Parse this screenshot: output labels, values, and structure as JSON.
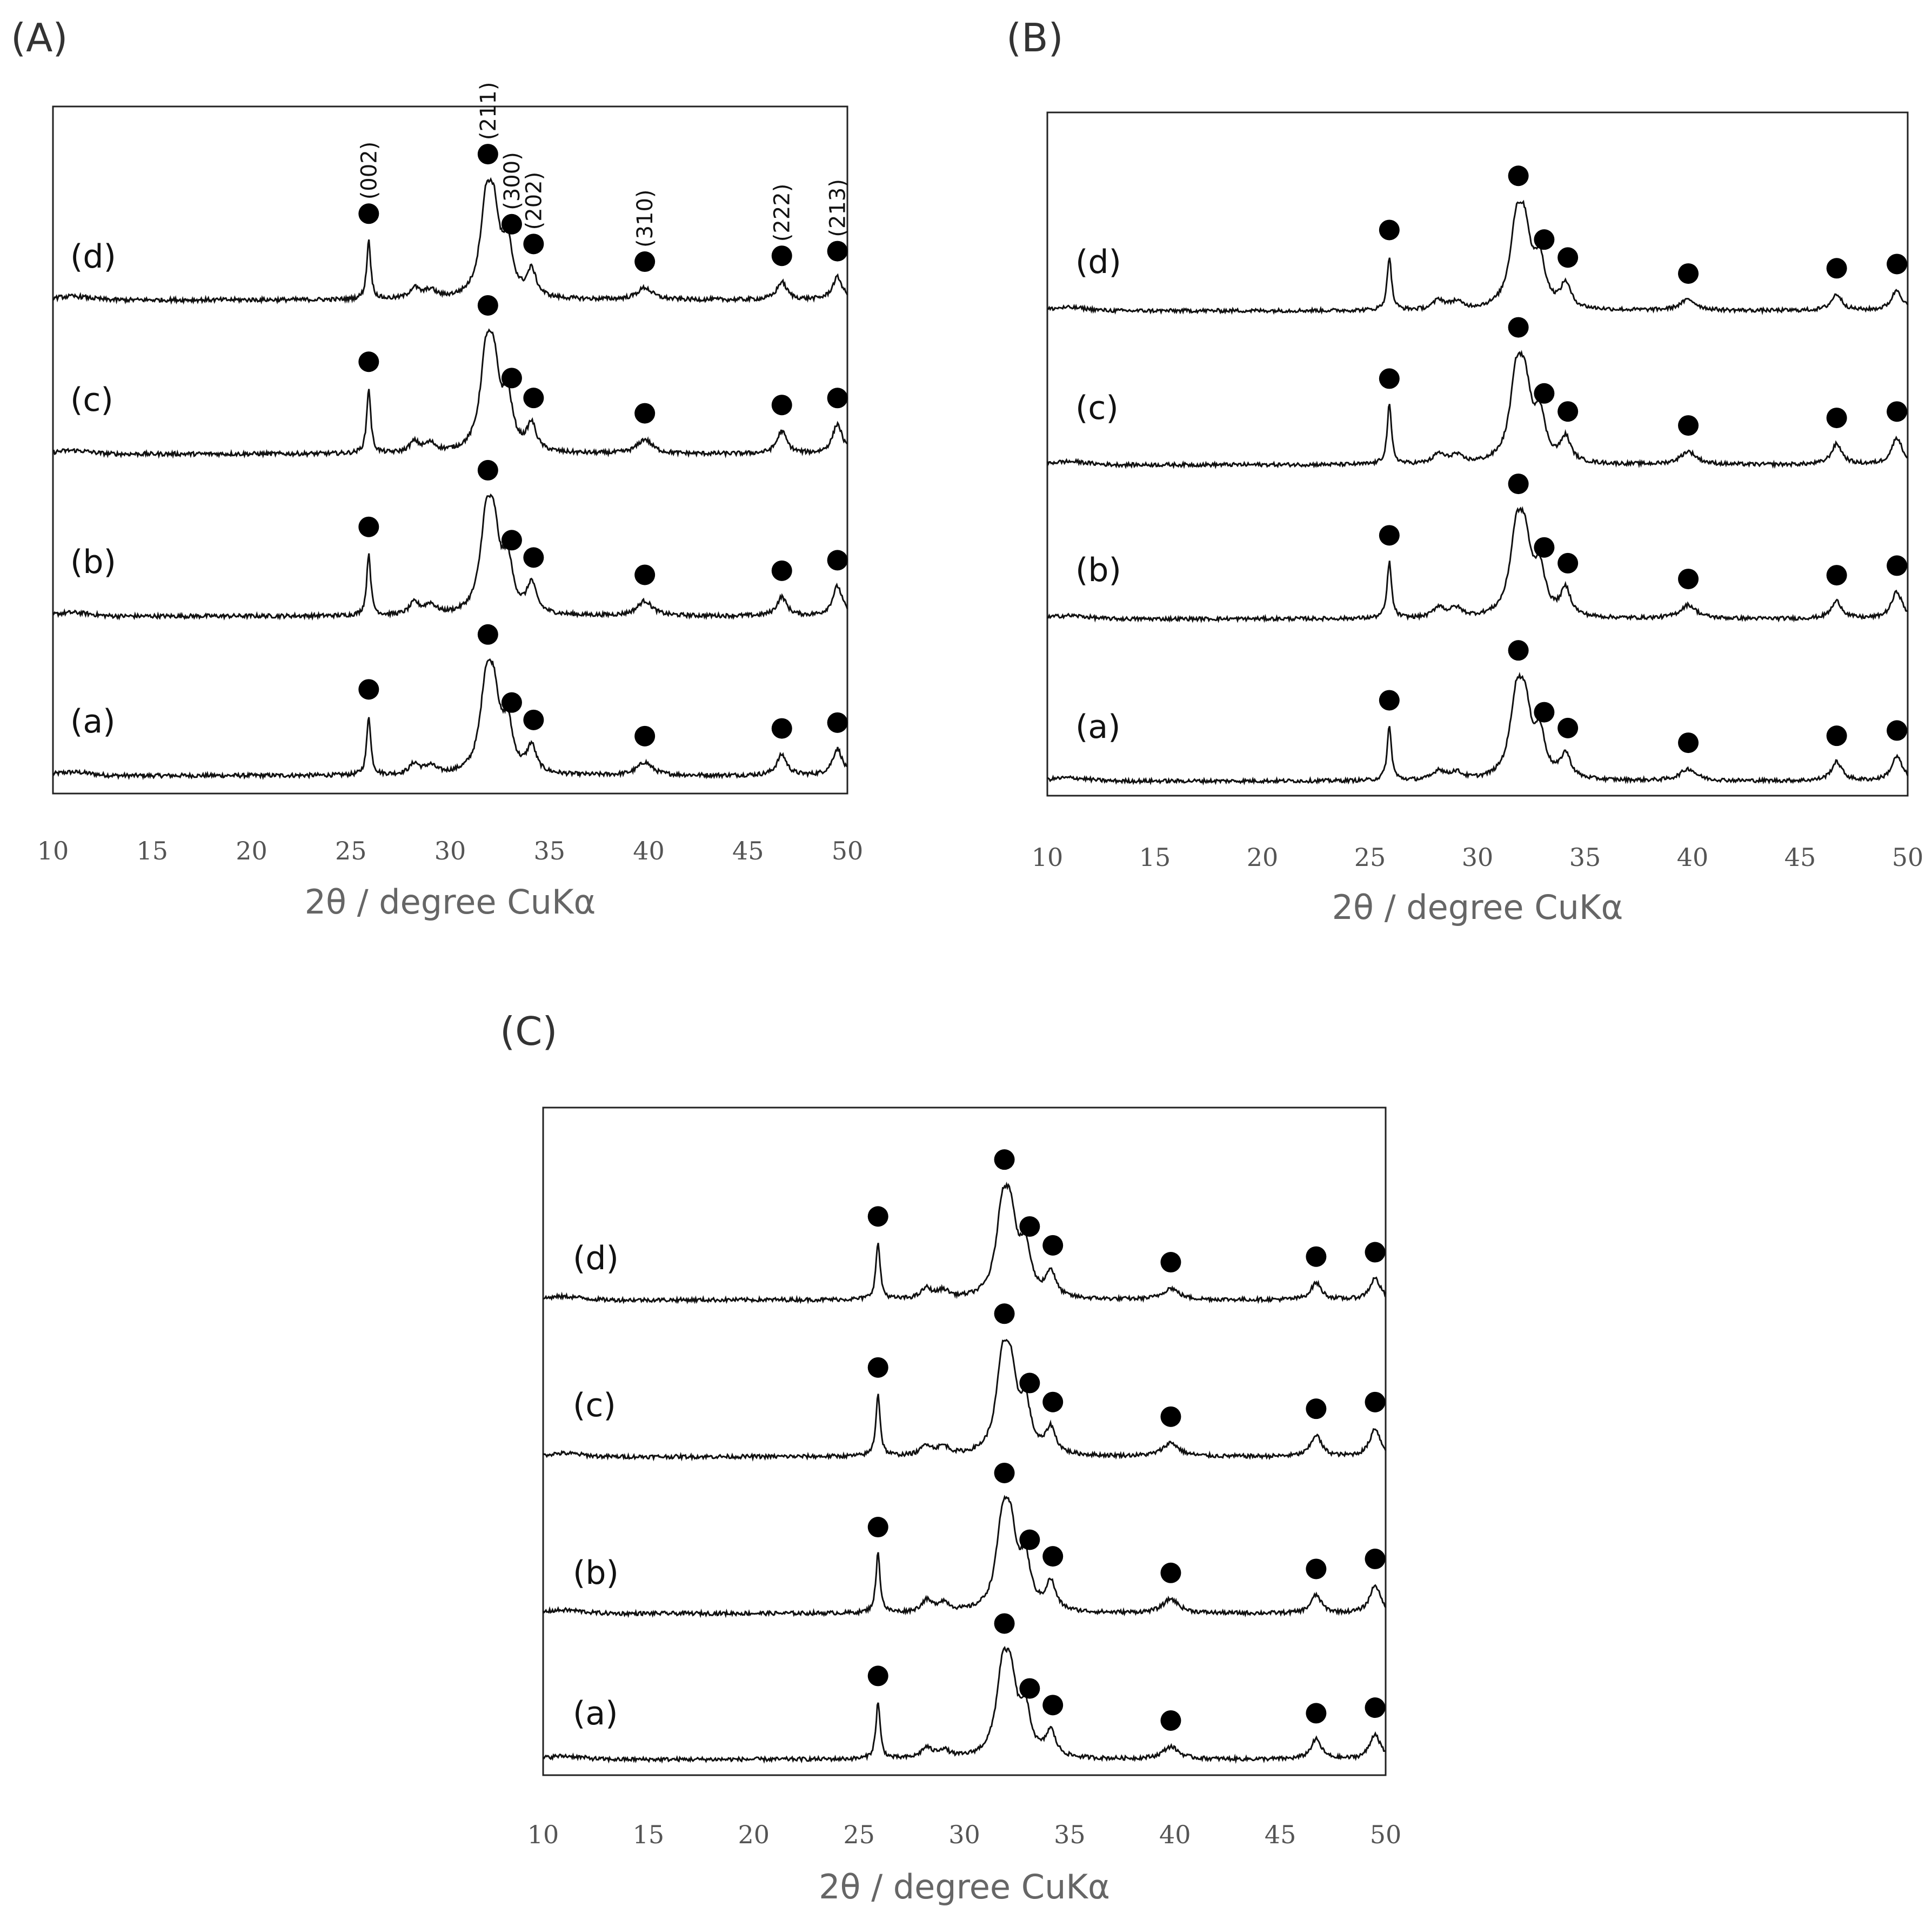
{
  "chart_data": [
    {
      "panel": "(A)",
      "type": "line",
      "xlabel": "2θ / degree CuKα",
      "ylabel": "",
      "xlim": [
        10,
        50
      ],
      "x_ticks": [
        "10",
        "15",
        "20",
        "25",
        "30",
        "35",
        "40",
        "45",
        "50"
      ],
      "grid": false,
      "series": [
        {
          "name": "(a)",
          "peaks": [
            [
              25.9,
              1.0
            ],
            [
              28.2,
              0.18
            ],
            [
              29.0,
              0.14
            ],
            [
              31.8,
              1.3
            ],
            [
              32.2,
              1.15
            ],
            [
              32.9,
              0.75
            ],
            [
              34.1,
              0.45
            ],
            [
              39.8,
              0.22
            ],
            [
              46.7,
              0.35
            ],
            [
              49.5,
              0.45
            ]
          ]
        },
        {
          "name": "(b)",
          "peaks": [
            [
              25.9,
              1.05
            ],
            [
              28.2,
              0.2
            ],
            [
              29.0,
              0.17
            ],
            [
              31.8,
              1.35
            ],
            [
              32.2,
              1.2
            ],
            [
              32.9,
              0.8
            ],
            [
              34.1,
              0.5
            ],
            [
              39.8,
              0.25
            ],
            [
              46.7,
              0.32
            ],
            [
              49.5,
              0.5
            ]
          ]
        },
        {
          "name": "(c)",
          "peaks": [
            [
              25.9,
              1.1
            ],
            [
              28.2,
              0.18
            ],
            [
              29.0,
              0.15
            ],
            [
              31.8,
              1.4
            ],
            [
              32.2,
              1.2
            ],
            [
              32.9,
              0.8
            ],
            [
              34.1,
              0.45
            ],
            [
              39.8,
              0.24
            ],
            [
              46.7,
              0.38
            ],
            [
              49.5,
              0.5
            ]
          ]
        },
        {
          "name": "(d)",
          "peaks": [
            [
              25.9,
              1.0
            ],
            [
              28.2,
              0.18
            ],
            [
              29.0,
              0.14
            ],
            [
              31.8,
              1.35
            ],
            [
              32.2,
              1.2
            ],
            [
              32.9,
              0.8
            ],
            [
              34.1,
              0.45
            ],
            [
              39.8,
              0.2
            ],
            [
              46.7,
              0.3
            ],
            [
              49.5,
              0.38
            ]
          ]
        }
      ],
      "markers": [
        25.9,
        31.9,
        33.1,
        34.2,
        39.8,
        46.7,
        49.5
      ],
      "annotations": [
        "(002)",
        "(211)",
        "(300)",
        "(202)",
        "(310)",
        "(222)",
        "(213)"
      ]
    },
    {
      "panel": "(B)",
      "type": "line",
      "xlabel": "2θ / degree CuKα",
      "ylabel": "",
      "xlim": [
        10,
        50
      ],
      "x_ticks": [
        "10",
        "15",
        "20",
        "25",
        "30",
        "35",
        "40",
        "45",
        "50"
      ],
      "grid": false,
      "series": [
        {
          "name": "(a)",
          "peaks": [
            [
              25.9,
              1.0
            ],
            [
              28.2,
              0.18
            ],
            [
              29.0,
              0.14
            ],
            [
              31.8,
              1.3
            ],
            [
              32.2,
              1.15
            ],
            [
              32.9,
              0.75
            ],
            [
              34.1,
              0.45
            ],
            [
              39.8,
              0.22
            ],
            [
              46.7,
              0.35
            ],
            [
              49.5,
              0.45
            ]
          ]
        },
        {
          "name": "(b)",
          "peaks": [
            [
              25.9,
              1.05
            ],
            [
              28.2,
              0.2
            ],
            [
              29.0,
              0.17
            ],
            [
              31.8,
              1.35
            ],
            [
              32.2,
              1.2
            ],
            [
              32.9,
              0.8
            ],
            [
              34.1,
              0.5
            ],
            [
              39.8,
              0.25
            ],
            [
              46.7,
              0.32
            ],
            [
              49.5,
              0.5
            ]
          ]
        },
        {
          "name": "(c)",
          "peaks": [
            [
              25.9,
              1.1
            ],
            [
              28.2,
              0.18
            ],
            [
              29.0,
              0.15
            ],
            [
              31.8,
              1.4
            ],
            [
              32.2,
              1.2
            ],
            [
              32.9,
              0.8
            ],
            [
              34.1,
              0.45
            ],
            [
              39.8,
              0.24
            ],
            [
              46.7,
              0.38
            ],
            [
              49.5,
              0.5
            ]
          ]
        },
        {
          "name": "(d)",
          "peaks": [
            [
              25.9,
              1.0
            ],
            [
              28.2,
              0.18
            ],
            [
              29.0,
              0.14
            ],
            [
              31.8,
              1.35
            ],
            [
              32.2,
              1.2
            ],
            [
              32.9,
              0.8
            ],
            [
              34.1,
              0.45
            ],
            [
              39.8,
              0.2
            ],
            [
              46.7,
              0.3
            ],
            [
              49.5,
              0.38
            ]
          ]
        }
      ],
      "markers": [
        25.9,
        31.9,
        33.1,
        34.2,
        39.8,
        46.7,
        49.5
      ],
      "annotations": []
    },
    {
      "panel": "(C)",
      "type": "line",
      "xlabel": "2θ / degree CuKα",
      "ylabel": "",
      "xlim": [
        10,
        50
      ],
      "x_ticks": [
        "10",
        "15",
        "20",
        "25",
        "30",
        "35",
        "40",
        "45",
        "50"
      ],
      "grid": false,
      "series": [
        {
          "name": "(a)",
          "peaks": [
            [
              25.9,
              1.0
            ],
            [
              28.2,
              0.18
            ],
            [
              29.0,
              0.14
            ],
            [
              31.8,
              1.3
            ],
            [
              32.2,
              1.15
            ],
            [
              32.9,
              0.75
            ],
            [
              34.1,
              0.45
            ],
            [
              39.8,
              0.22
            ],
            [
              46.7,
              0.35
            ],
            [
              49.5,
              0.45
            ]
          ]
        },
        {
          "name": "(b)",
          "peaks": [
            [
              25.9,
              1.05
            ],
            [
              28.2,
              0.2
            ],
            [
              29.0,
              0.17
            ],
            [
              31.8,
              1.35
            ],
            [
              32.2,
              1.2
            ],
            [
              32.9,
              0.8
            ],
            [
              34.1,
              0.5
            ],
            [
              39.8,
              0.25
            ],
            [
              46.7,
              0.32
            ],
            [
              49.5,
              0.5
            ]
          ]
        },
        {
          "name": "(c)",
          "peaks": [
            [
              25.9,
              1.1
            ],
            [
              28.2,
              0.18
            ],
            [
              29.0,
              0.15
            ],
            [
              31.8,
              1.4
            ],
            [
              32.2,
              1.2
            ],
            [
              32.9,
              0.8
            ],
            [
              34.1,
              0.45
            ],
            [
              39.8,
              0.24
            ],
            [
              46.7,
              0.38
            ],
            [
              49.5,
              0.5
            ]
          ]
        },
        {
          "name": "(d)",
          "peaks": [
            [
              25.9,
              1.0
            ],
            [
              28.2,
              0.18
            ],
            [
              29.0,
              0.14
            ],
            [
              31.8,
              1.35
            ],
            [
              32.2,
              1.2
            ],
            [
              32.9,
              0.8
            ],
            [
              34.1,
              0.45
            ],
            [
              39.8,
              0.2
            ],
            [
              46.7,
              0.3
            ],
            [
              49.5,
              0.38
            ]
          ]
        }
      ],
      "markers": [
        25.9,
        31.9,
        33.1,
        34.2,
        39.8,
        46.7,
        49.5
      ],
      "annotations": []
    }
  ]
}
